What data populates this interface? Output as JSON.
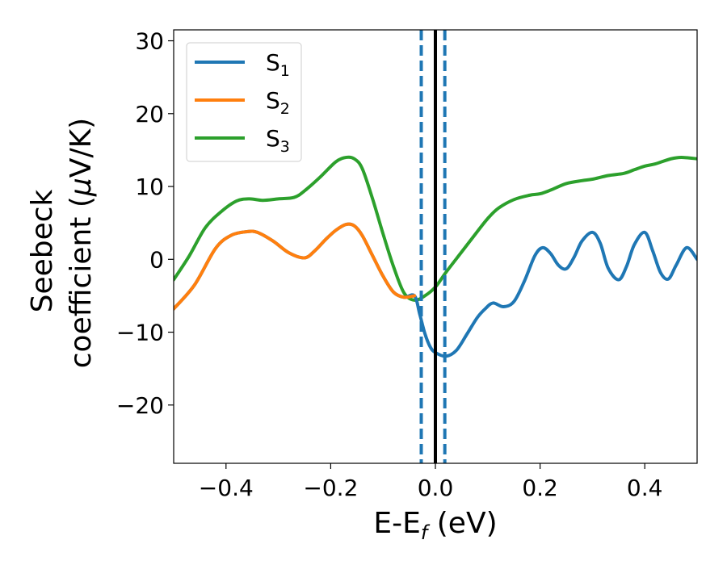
{
  "chart_data": {
    "type": "line",
    "xlabel": {
      "main": "E-E",
      "sub": "f",
      "unit": " (eV)"
    },
    "ylabel": {
      "line1": "Seebeck",
      "line2_pre": "coefficient  (",
      "mu": "μ",
      "line2_post": "V/K)"
    },
    "xlim": [
      -0.5,
      0.5
    ],
    "ylim": [
      -28,
      31.5
    ],
    "xticks": [
      -0.4,
      -0.2,
      0.0,
      0.2,
      0.4
    ],
    "xtick_labels": [
      "−0.4",
      "−0.2",
      "0.0",
      "0.2",
      "0.4"
    ],
    "yticks": [
      -20,
      -10,
      0,
      10,
      20,
      30
    ],
    "ytick_labels": [
      "−20",
      "−10",
      "0",
      "10",
      "20",
      "30"
    ],
    "grid": false,
    "legend_position": "top-left",
    "vlines": [
      {
        "x": 0.0,
        "color": "#000000",
        "style": "solid"
      },
      {
        "x": -0.027,
        "color": "#1f77b4",
        "style": "dashed"
      },
      {
        "x": 0.018,
        "color": "#1f77b4",
        "style": "dashed"
      }
    ],
    "series": [
      {
        "name": "S1",
        "label_main": "S",
        "label_sub": "1",
        "color": "#1f77b4",
        "x": [
          -0.5,
          -0.46,
          -0.42,
          -0.39,
          -0.36,
          -0.34,
          -0.31,
          -0.28,
          -0.25,
          -0.23,
          -0.21,
          -0.19,
          -0.17,
          -0.155,
          -0.14,
          -0.12,
          -0.1,
          -0.08,
          -0.06,
          -0.04,
          -0.03,
          -0.02,
          -0.01,
          0.0,
          0.02,
          0.04,
          0.06,
          0.08,
          0.095,
          0.11,
          0.13,
          0.15,
          0.17,
          0.19,
          0.205,
          0.22,
          0.235,
          0.25,
          0.265,
          0.28,
          0.3,
          0.315,
          0.33,
          0.35,
          0.365,
          0.38,
          0.4,
          0.415,
          0.43,
          0.445,
          0.46,
          0.48,
          0.5
        ],
        "y": [
          -6.8,
          -3.5,
          1.5,
          3.3,
          3.8,
          3.7,
          2.5,
          0.9,
          0.2,
          1.2,
          2.7,
          4.0,
          4.8,
          4.6,
          3.3,
          0.5,
          -2.3,
          -4.5,
          -5.2,
          -5.0,
          -7.5,
          -10.2,
          -12.0,
          -12.8,
          -13.3,
          -12.5,
          -10.3,
          -8.0,
          -6.8,
          -6.0,
          -6.5,
          -5.8,
          -3.0,
          0.5,
          1.6,
          0.8,
          -0.8,
          -1.3,
          0.3,
          2.5,
          3.7,
          2.2,
          -1.2,
          -2.8,
          -1.0,
          2.0,
          3.7,
          1.2,
          -1.8,
          -2.7,
          -0.8,
          1.6,
          0.0
        ]
      },
      {
        "name": "S2",
        "label_main": "S",
        "label_sub": "2",
        "color": "#ff7f0e",
        "x": [
          -0.5,
          -0.46,
          -0.42,
          -0.39,
          -0.36,
          -0.34,
          -0.31,
          -0.28,
          -0.25,
          -0.23,
          -0.21,
          -0.19,
          -0.17,
          -0.155,
          -0.14,
          -0.12,
          -0.1,
          -0.08,
          -0.06,
          -0.04
        ],
        "y": [
          -6.8,
          -3.5,
          1.5,
          3.3,
          3.8,
          3.7,
          2.5,
          0.9,
          0.2,
          1.2,
          2.7,
          4.0,
          4.8,
          4.6,
          3.3,
          0.5,
          -2.3,
          -4.5,
          -5.2,
          -5.0
        ]
      },
      {
        "name": "S3",
        "label_main": "S",
        "label_sub": "3",
        "color": "#2ca02c",
        "x": [
          -0.5,
          -0.47,
          -0.44,
          -0.41,
          -0.38,
          -0.355,
          -0.33,
          -0.3,
          -0.27,
          -0.25,
          -0.22,
          -0.19,
          -0.17,
          -0.155,
          -0.14,
          -0.12,
          -0.1,
          -0.08,
          -0.06,
          -0.04,
          -0.02,
          0.0,
          0.02,
          0.05,
          0.08,
          0.1,
          0.12,
          0.15,
          0.18,
          0.2,
          0.22,
          0.25,
          0.28,
          0.3,
          0.33,
          0.36,
          0.38,
          0.4,
          0.42,
          0.45,
          0.47,
          0.5
        ],
        "y": [
          -2.8,
          0.5,
          4.3,
          6.5,
          8.0,
          8.3,
          8.1,
          8.3,
          8.5,
          9.4,
          11.3,
          13.4,
          14.0,
          13.8,
          12.5,
          8.3,
          3.5,
          -1.0,
          -4.6,
          -5.6,
          -5.0,
          -3.8,
          -1.8,
          1.0,
          3.8,
          5.6,
          7.0,
          8.2,
          8.8,
          9.0,
          9.5,
          10.4,
          10.8,
          11.0,
          11.5,
          11.8,
          12.3,
          12.8,
          13.1,
          13.8,
          14.0,
          13.8
        ]
      }
    ]
  }
}
